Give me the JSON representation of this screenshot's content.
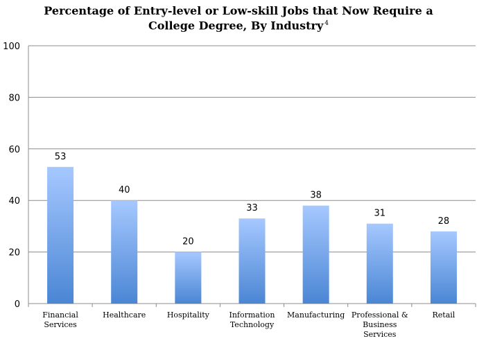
{
  "chart_data": {
    "type": "bar",
    "title_line1": "Percentage of Entry-level or Low-skill Jobs that Now Require a",
    "title_line2": "College Degree, By Industry",
    "title_sup": "4",
    "categories": [
      "Financial Services",
      "Healthcare",
      "Hospitality",
      "Information Technology",
      "Manufacturing",
      "Professional & Business Services",
      "Retail"
    ],
    "category_lines": [
      [
        "Financial",
        "Services"
      ],
      [
        "Healthcare"
      ],
      [
        "Hospitality"
      ],
      [
        "Information",
        "Technology"
      ],
      [
        "Manufacturing"
      ],
      [
        "Professional &",
        "Business",
        "Services"
      ],
      [
        "Retail"
      ]
    ],
    "values": [
      53,
      40,
      20,
      33,
      38,
      31,
      28
    ],
    "ylim": [
      0,
      100
    ],
    "yticks": [
      0,
      20,
      40,
      60,
      80,
      100
    ],
    "xlabel": "",
    "ylabel": "",
    "grid": true,
    "colors": {
      "bar_top": "#a6c8ff",
      "bar_bottom": "#4a86d4",
      "grid": "#8c8c8c",
      "axis": "#8c8c8c"
    }
  }
}
